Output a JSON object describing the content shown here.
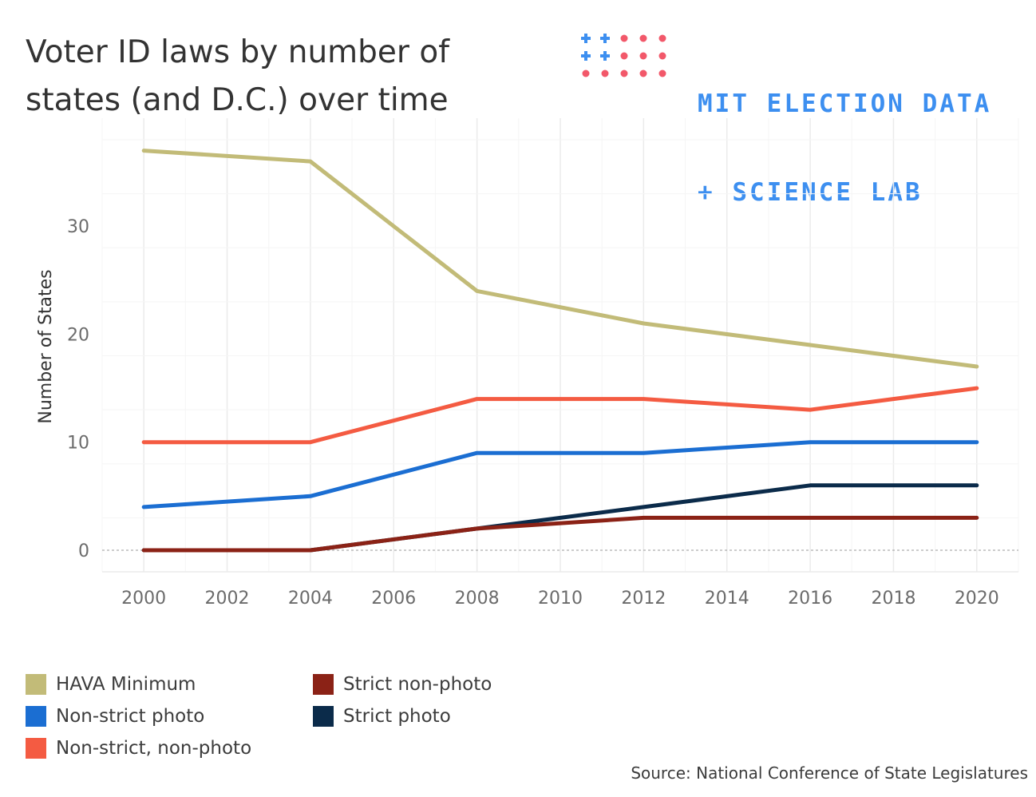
{
  "title_line1": "Voter ID laws by number of",
  "title_line2": "states (and D.C.) over time",
  "logo": {
    "line1": "MIT ELECTION DATA",
    "line2": "+ SCIENCE LAB",
    "text_color": "#3d8ff0",
    "plus_color": "#3d8ff0",
    "dot_color": "#f2586a"
  },
  "source": "Source: National Conference of State Legislatures",
  "chart_data": {
    "type": "line",
    "ylabel": "Number of States",
    "xlabel": "",
    "xlim": [
      1999,
      2021
    ],
    "ylim": [
      -2,
      40
    ],
    "x_ticks": [
      2000,
      2002,
      2004,
      2006,
      2008,
      2010,
      2012,
      2014,
      2016,
      2018,
      2020
    ],
    "y_ticks": [
      0,
      10,
      20,
      30
    ],
    "grid": true,
    "zero_line": "dashed",
    "legend_position": "bottom",
    "series": [
      {
        "name": "HAVA Minimum",
        "color": "#c2bb78",
        "x": [
          2000,
          2004,
          2008,
          2012,
          2016,
          2020
        ],
        "values": [
          37,
          36,
          24,
          21,
          19,
          17
        ]
      },
      {
        "name": "Non-strict, non-photo",
        "color": "#f45b42",
        "x": [
          2000,
          2004,
          2008,
          2012,
          2016,
          2020
        ],
        "values": [
          10,
          10,
          14,
          14,
          13,
          15
        ]
      },
      {
        "name": "Non-strict photo",
        "color": "#1b6ed2",
        "x": [
          2000,
          2004,
          2008,
          2012,
          2016,
          2020
        ],
        "values": [
          4,
          5,
          9,
          9,
          10,
          10
        ]
      },
      {
        "name": "Strict photo",
        "color": "#0b2b4a",
        "x": [
          2000,
          2004,
          2008,
          2012,
          2016,
          2020
        ],
        "values": [
          0,
          0,
          2,
          4,
          6,
          6
        ]
      },
      {
        "name": "Strict non-photo",
        "color": "#8b2216",
        "x": [
          2000,
          2004,
          2008,
          2012,
          2016,
          2020
        ],
        "values": [
          0,
          0,
          2,
          3,
          3,
          3
        ]
      }
    ]
  },
  "legend": {
    "items": [
      {
        "label": "HAVA Minimum",
        "color": "#c2bb78"
      },
      {
        "label": "Non-strict photo",
        "color": "#1b6ed2"
      },
      {
        "label": "Non-strict, non-photo",
        "color": "#f45b42"
      },
      {
        "label": "Strict non-photo",
        "color": "#8b2216"
      },
      {
        "label": "Strict photo",
        "color": "#0b2b4a"
      }
    ]
  }
}
